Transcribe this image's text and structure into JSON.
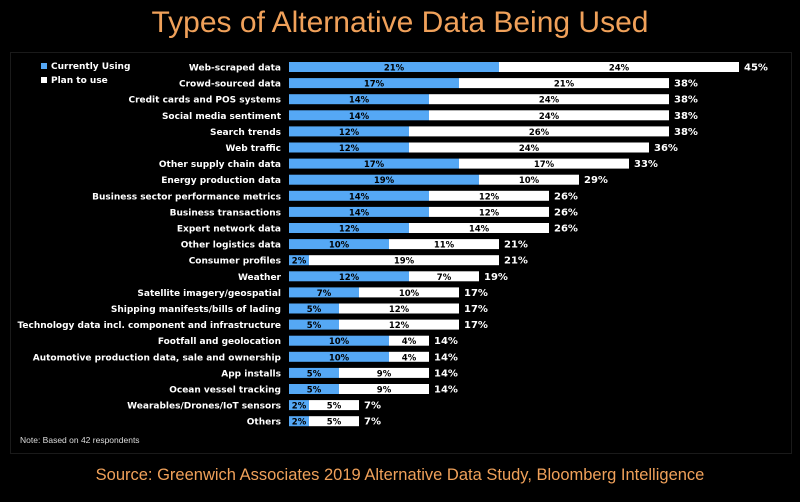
{
  "title": "Types of Alternative Data Being Used",
  "note": "Note: Based on 42 respondents",
  "source": "Source: Greenwich Associates 2019 Alternative Data Study, Bloomberg Intelligence",
  "colors": {
    "currently_using": "#55a8f5",
    "plan_to_use": "#ffffff",
    "title": "#f0a15a",
    "background": "#000000"
  },
  "chart_data": {
    "type": "bar",
    "orientation": "horizontal",
    "stacked": true,
    "legend_position": "top-left",
    "categories": [
      "Web-scraped data",
      "Crowd-sourced data",
      "Credit cards and POS systems",
      "Social media sentiment",
      "Search trends",
      "Web traffic",
      "Other supply chain data",
      "Energy production data",
      "Business sector performance metrics",
      "Business transactions",
      "Expert network data",
      "Other logistics data",
      "Consumer profiles",
      "Weather",
      "Satellite imagery/geospatial",
      "Shipping manifests/bills of lading",
      "Technology data incl. component and infrastructure",
      "Footfall and geolocation",
      "Automotive production data, sale and ownership",
      "App installs",
      "Ocean vessel tracking",
      "Wearables/Drones/IoT sensors",
      "Others"
    ],
    "series": [
      {
        "name": "Currently Using",
        "values": [
          21,
          17,
          14,
          14,
          12,
          12,
          17,
          19,
          14,
          14,
          12,
          10,
          2,
          12,
          7,
          5,
          5,
          10,
          10,
          5,
          5,
          2,
          2
        ]
      },
      {
        "name": "Plan to use",
        "values": [
          24,
          21,
          24,
          24,
          26,
          24,
          17,
          10,
          12,
          12,
          14,
          11,
          19,
          7,
          10,
          12,
          12,
          4,
          4,
          9,
          9,
          5,
          5
        ]
      }
    ],
    "totals": [
      45,
      38,
      38,
      38,
      38,
      36,
      33,
      29,
      26,
      26,
      26,
      21,
      21,
      19,
      17,
      17,
      17,
      14,
      14,
      14,
      14,
      7,
      7
    ],
    "value_suffix": "%"
  }
}
